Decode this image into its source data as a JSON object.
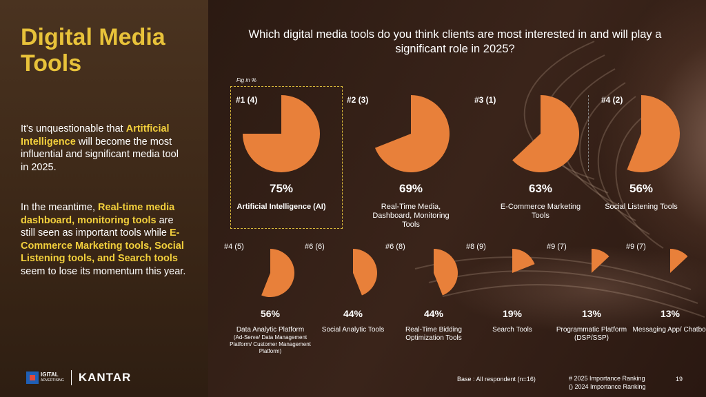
{
  "title": "Digital Media Tools",
  "paragraph1": [
    {
      "text": "It's unquestionable that ",
      "hl": false
    },
    {
      "text": "Artitficial Intelligence",
      "hl": true
    },
    {
      "text": " will become the most influential and significant media tool in 2025.",
      "hl": false
    }
  ],
  "paragraph2": [
    {
      "text": "In the meantime, ",
      "hl": false
    },
    {
      "text": "Real-time media dashboard, monitoring tools",
      "hl": true
    },
    {
      "text": " are still seen as important tools while ",
      "hl": false
    },
    {
      "text": "E-Commerce Marketing tools, Social Listening tools, and Search tools",
      "hl": true
    },
    {
      "text": " seem to lose its momentum this year.",
      "hl": false
    }
  ],
  "logo": {
    "brand_small": "IGITAL",
    "brand_sub": "ADVERTISING",
    "kantar": "KANTAR"
  },
  "question": "Which digital media tools do you think clients are most interested in and will play a significant role in 2025?",
  "fig_note": "Fig in %",
  "footer": {
    "base": "Base : All respondent (n=16)",
    "ranking_2025": "# 2025 Importance Ranking",
    "ranking_2024": "() 2024 Importance Ranking",
    "page": "19"
  },
  "colors": {
    "pie": "#e8803a",
    "title": "#e8c23a",
    "highlight": "#f2cf3c"
  },
  "chart_data": {
    "type": "pie",
    "unit": "%",
    "items": [
      {
        "rank": "#1 (4)",
        "value": 75,
        "label": "Artificial Intelligence (AI)",
        "sub": "",
        "highlighted": true
      },
      {
        "rank": "#2 (3)",
        "value": 69,
        "label": "Real-Time Media, Dashboard, Monitoring Tools",
        "sub": "",
        "highlighted": false
      },
      {
        "rank": "#3 (1)",
        "value": 63,
        "label": "E-Commerce Marketing Tools",
        "sub": "",
        "highlighted": false
      },
      {
        "rank": "#4 (2)",
        "value": 56,
        "label": "Social Listening Tools",
        "sub": "",
        "highlighted": false
      },
      {
        "rank": "#4 (5)",
        "value": 56,
        "label": "Data Analytic Platform",
        "sub": "(Ad-Serve/ Data Management Platform/ Customer Management Platform)",
        "highlighted": false
      },
      {
        "rank": "#6 (6)",
        "value": 44,
        "label": "Social Analytic Tools",
        "sub": "",
        "highlighted": false
      },
      {
        "rank": "#6 (8)",
        "value": 44,
        "label": "Real-Time Bidding Optimization Tools",
        "sub": "",
        "highlighted": false
      },
      {
        "rank": "#8 (9)",
        "value": 19,
        "label": "Search Tools",
        "sub": "",
        "highlighted": false
      },
      {
        "rank": "#9 (7)",
        "value": 13,
        "label": "Programmatic Platform (DSP/SSP)",
        "sub": "",
        "highlighted": false
      },
      {
        "rank": "#9 (7)",
        "value": 13,
        "label": "Messaging App/ Chatbot",
        "sub": "",
        "highlighted": false
      }
    ]
  }
}
